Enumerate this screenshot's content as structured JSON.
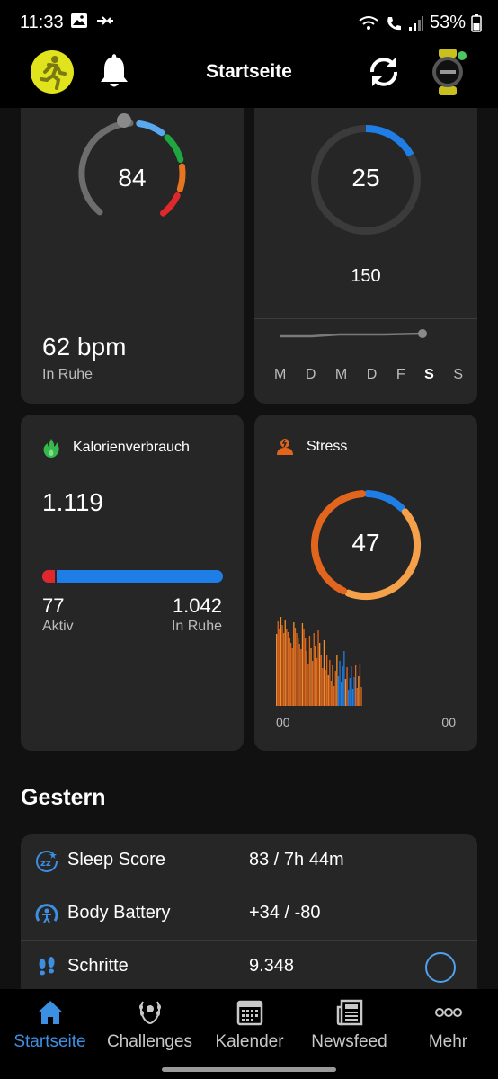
{
  "status_bar": {
    "time": "11:33",
    "battery": "53%"
  },
  "header": {
    "title": "Startseite"
  },
  "cards": {
    "heart_rate": {
      "gauge_value": "84",
      "resting_value": "62 bpm",
      "resting_label": "In Ruhe"
    },
    "intensity": {
      "value": "25",
      "goal": "150",
      "progress_fraction": 0.17,
      "weekdays": [
        "M",
        "D",
        "M",
        "D",
        "F",
        "S",
        "S"
      ],
      "current_day_index": 5
    },
    "calories": {
      "title": "Kalorienverbrauch",
      "total": "1.119",
      "active_value": "77",
      "active_label": "Aktiv",
      "resting_value": "1.042",
      "resting_label": "In Ruhe",
      "active_fraction": 0.069
    },
    "stress": {
      "title": "Stress",
      "value": "47",
      "axis_start": "00",
      "axis_end": "00"
    }
  },
  "yesterday": {
    "title": "Gestern",
    "rows": [
      {
        "label": "Sleep Score",
        "value": "83 / 7h 44m",
        "icon": "sleep-icon"
      },
      {
        "label": "Body Battery",
        "value": "+34 / -80",
        "icon": "body-battery-icon"
      },
      {
        "label": "Schritte",
        "value": "9.348",
        "icon": "footsteps-icon"
      }
    ]
  },
  "bottom_nav": {
    "items": [
      {
        "label": "Startseite",
        "icon": "home-icon",
        "active": true
      },
      {
        "label": "Challenges",
        "icon": "laurel-icon",
        "active": false
      },
      {
        "label": "Kalender",
        "icon": "calendar-icon",
        "active": false
      },
      {
        "label": "Newsfeed",
        "icon": "news-icon",
        "active": false
      },
      {
        "label": "Mehr",
        "icon": "more-icon",
        "active": false
      }
    ]
  },
  "colors": {
    "accent_blue": "#1e7ee5",
    "stress_orange": "#f28d2a",
    "stress_orange_dark": "#e1651c",
    "green": "#1fa641",
    "red": "#e0282c",
    "card_bg": "#262626",
    "nav_active": "#3d8fe2"
  }
}
